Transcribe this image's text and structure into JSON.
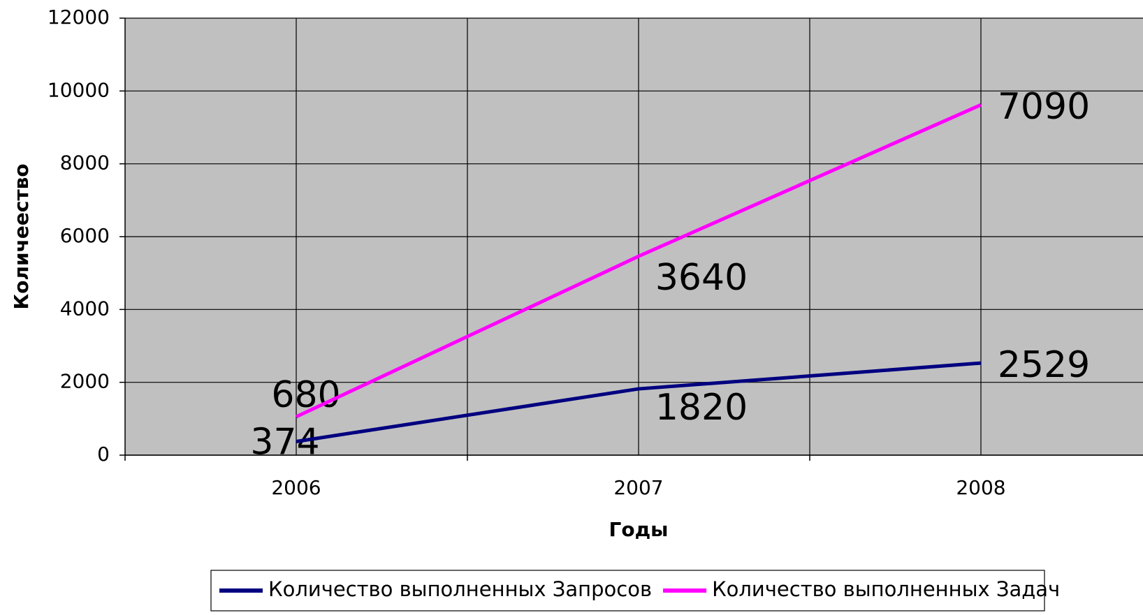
{
  "chart_data": {
    "type": "line",
    "stacked": true,
    "x_label": "Годы",
    "y_label": "Количеество",
    "categories": [
      "2006",
      "2007",
      "2008"
    ],
    "series": [
      {
        "name": "Количество выполненных Запросов",
        "color": "#000080",
        "values": [
          374,
          1820,
          2529
        ]
      },
      {
        "name": "Количество выполненных Задач",
        "color": "#ff00ff",
        "values": [
          680,
          3640,
          7090
        ]
      }
    ],
    "ylim": [
      0,
      12000
    ],
    "yticks": [
      0,
      2000,
      4000,
      6000,
      8000,
      10000,
      12000
    ],
    "grid": true,
    "plot_background": "#c0c0c0",
    "legend": "bottom"
  }
}
